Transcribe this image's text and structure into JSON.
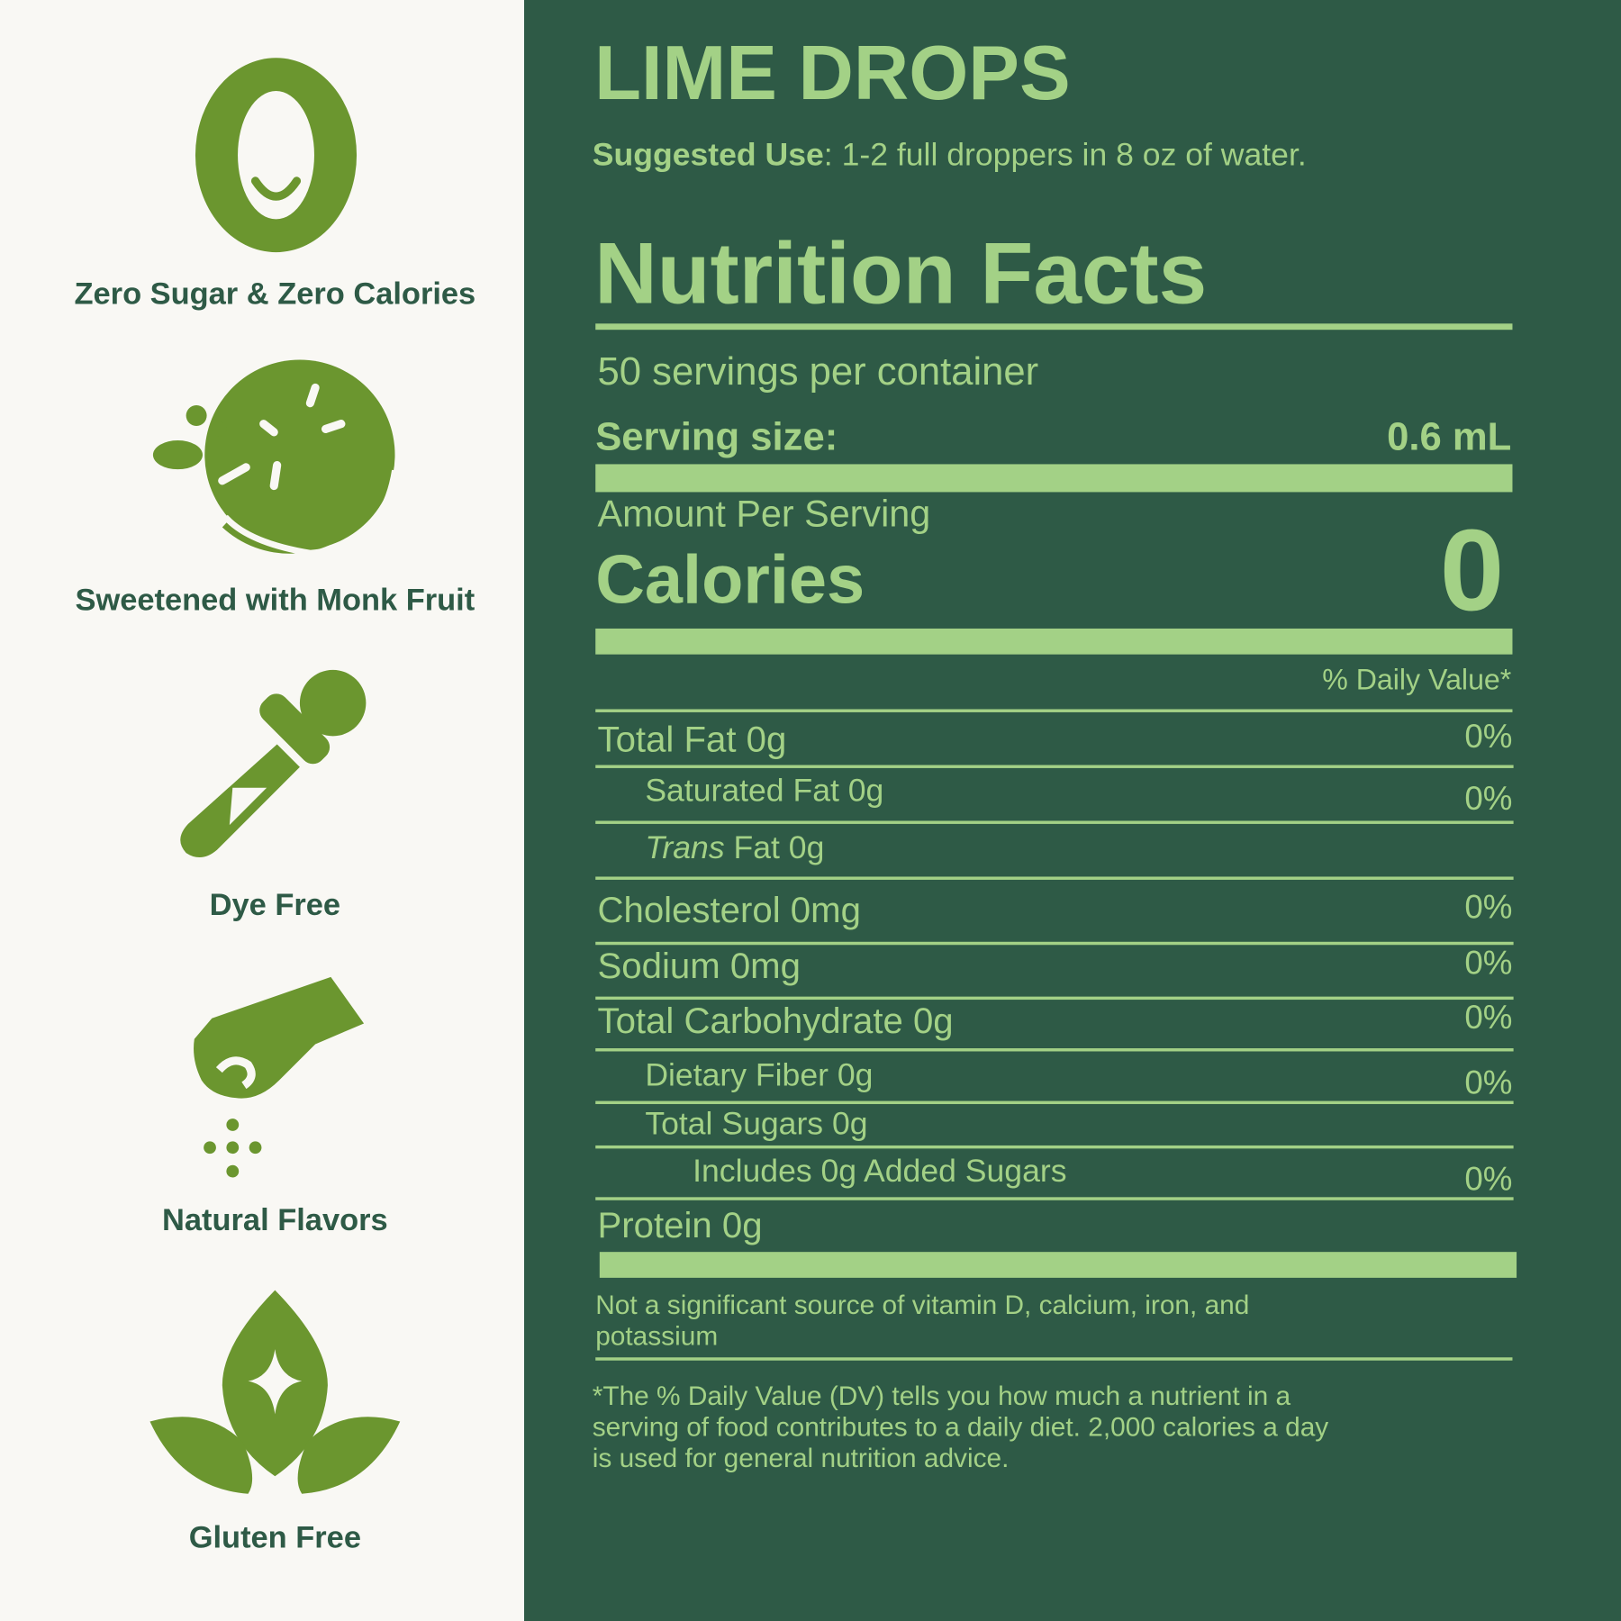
{
  "features": [
    "Zero Sugar & Zero Calories",
    "Sweetened with Monk Fruit",
    "Dye Free",
    "Natural Flavors",
    "Gluten Free"
  ],
  "product": {
    "title": "LIME DROPS",
    "suggested_use_label": "Suggested Use",
    "suggested_use_text": ": 1-2 full droppers in 8 oz of water."
  },
  "nutrition": {
    "heading": "Nutrition Facts",
    "servings": "50 servings per container",
    "serving_size_label": "Serving size:",
    "serving_size_value": "0.6 mL",
    "amount_per_serving": "Amount Per Serving",
    "calories_label": "Calories",
    "calories_value": "0",
    "daily_value_header": "% Daily Value*",
    "rows": [
      {
        "label": "Total Fat 0g",
        "dv": "0%",
        "indent": 0
      },
      {
        "label": "Saturated Fat 0g",
        "dv": "0%",
        "indent": 1
      },
      {
        "label_italic": "Trans",
        "label": " Fat 0g",
        "indent": 1
      },
      {
        "label": "Cholesterol 0mg",
        "dv": "0%",
        "indent": 0
      },
      {
        "label": "Sodium 0mg",
        "dv": "0%",
        "indent": 0
      },
      {
        "label": "Total Carbohydrate 0g",
        "dv": "0%",
        "indent": 0
      },
      {
        "label": "Dietary Fiber 0g",
        "dv": "0%",
        "indent": 1
      },
      {
        "label": "Total Sugars 0g",
        "indent": 1
      },
      {
        "label": "Includes 0g Added Sugars",
        "dv": "0%",
        "indent": 2
      },
      {
        "label": "Protein 0g",
        "indent": 0
      }
    ],
    "not_significant": [
      "Not a significant source of vitamin D, calcium, iron, and",
      "potassium"
    ],
    "footnote": [
      "*The % Daily Value (DV) tells you how much a nutrient in a",
      "serving of food contributes to a daily diet. 2,000 calories a day",
      "is used for general nutrition advice."
    ]
  }
}
